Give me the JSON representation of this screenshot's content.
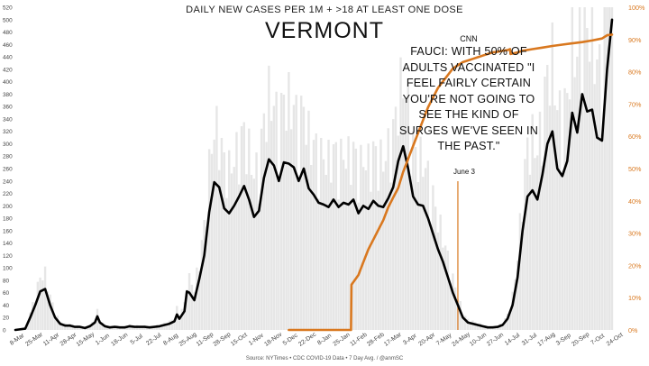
{
  "chart_data": {
    "type": "line",
    "title": "DAILY NEW CASES PER 1M + >18 AT LEAST ONE DOSE",
    "subtitle": "VERMONT",
    "source": "Source: NYTimes • CDC COVID-19 Data • 7 Day Avg. / @anmSC",
    "x_tick_labels": [
      "8-Mar",
      "25-Mar",
      "11-Apr",
      "28-Apr",
      "15-May",
      "1-Jun",
      "18-Jun",
      "5-Jul",
      "22-Jul",
      "8-Aug",
      "25-Aug",
      "11-Sep",
      "28-Sep",
      "15-Oct",
      "1-Nov",
      "18-Nov",
      "5-Dec",
      "22-Dec",
      "8-Jan",
      "25-Jan",
      "11-Feb",
      "28-Feb",
      "17-Mar",
      "3-Apr",
      "20-Apr",
      "7-May",
      "24-May",
      "10-Jun",
      "27-Jun",
      "14-Jul",
      "31-Jul",
      "17-Aug",
      "3-Sep",
      "20-Sep",
      "7-Oct",
      "24-Oct"
    ],
    "left_axis": {
      "label": "",
      "ylim": [
        0,
        520
      ],
      "ticks": [
        0,
        20,
        40,
        60,
        80,
        100,
        120,
        140,
        160,
        180,
        200,
        220,
        240,
        260,
        280,
        300,
        320,
        340,
        360,
        380,
        400,
        420,
        440,
        460,
        480,
        500,
        520
      ]
    },
    "right_axis": {
      "label": "",
      "ylim": [
        0,
        100
      ],
      "ticks": [
        "0%",
        "10%",
        "20%",
        "30%",
        "40%",
        "50%",
        "60%",
        "70%",
        "80%",
        "90%",
        "100%"
      ]
    },
    "series": [
      {
        "name": "",
        "axis": "left",
        "color": "#000000",
        "points": [
          [
            0,
            0
          ],
          [
            2,
            2
          ],
          [
            3,
            20
          ],
          [
            4,
            40
          ],
          [
            5,
            62
          ],
          [
            6,
            66
          ],
          [
            7,
            40
          ],
          [
            8,
            20
          ],
          [
            9,
            10
          ],
          [
            10,
            7
          ],
          [
            11,
            7
          ],
          [
            12,
            5
          ],
          [
            13,
            5
          ],
          [
            14,
            3
          ],
          [
            15,
            6
          ],
          [
            16,
            12
          ],
          [
            16.5,
            22
          ],
          [
            17,
            12
          ],
          [
            18,
            6
          ],
          [
            19,
            4
          ],
          [
            20,
            5
          ],
          [
            21,
            4
          ],
          [
            22,
            4
          ],
          [
            23,
            6
          ],
          [
            24,
            5
          ],
          [
            25,
            5
          ],
          [
            26,
            5
          ],
          [
            27,
            4
          ],
          [
            28,
            5
          ],
          [
            29,
            6
          ],
          [
            30,
            8
          ],
          [
            31,
            10
          ],
          [
            32,
            14
          ],
          [
            32.5,
            25
          ],
          [
            33,
            18
          ],
          [
            34,
            30
          ],
          [
            34.5,
            62
          ],
          [
            35,
            60
          ],
          [
            36,
            48
          ],
          [
            37,
            82
          ],
          [
            38,
            120
          ],
          [
            39,
            190
          ],
          [
            40,
            238
          ],
          [
            41,
            230
          ],
          [
            42,
            196
          ],
          [
            43,
            188
          ],
          [
            44,
            200
          ],
          [
            45,
            215
          ],
          [
            46,
            232
          ],
          [
            47,
            210
          ],
          [
            48,
            182
          ],
          [
            49,
            192
          ],
          [
            50,
            245
          ],
          [
            51,
            275
          ],
          [
            52,
            265
          ],
          [
            53,
            240
          ],
          [
            54,
            270
          ],
          [
            55,
            268
          ],
          [
            56,
            262
          ],
          [
            57,
            240
          ],
          [
            58,
            260
          ],
          [
            59,
            228
          ],
          [
            60,
            218
          ],
          [
            61,
            205
          ],
          [
            62,
            202
          ],
          [
            63,
            198
          ],
          [
            64,
            210
          ],
          [
            65,
            198
          ],
          [
            66,
            205
          ],
          [
            67,
            202
          ],
          [
            68,
            210
          ],
          [
            69,
            188
          ],
          [
            70,
            200
          ],
          [
            71,
            195
          ],
          [
            72,
            208
          ],
          [
            73,
            200
          ],
          [
            74,
            198
          ],
          [
            75,
            212
          ],
          [
            76,
            230
          ],
          [
            77,
            272
          ],
          [
            78,
            296
          ],
          [
            79,
            260
          ],
          [
            80,
            215
          ],
          [
            81,
            202
          ],
          [
            82,
            200
          ],
          [
            83,
            180
          ],
          [
            84,
            155
          ],
          [
            85,
            130
          ],
          [
            86,
            110
          ],
          [
            87,
            85
          ],
          [
            88,
            60
          ],
          [
            89,
            40
          ],
          [
            90,
            20
          ],
          [
            91,
            12
          ],
          [
            92,
            10
          ],
          [
            93,
            8
          ],
          [
            94,
            6
          ],
          [
            95,
            4
          ],
          [
            96,
            4
          ],
          [
            97,
            5
          ],
          [
            98,
            8
          ],
          [
            99,
            18
          ],
          [
            100,
            40
          ],
          [
            101,
            85
          ],
          [
            102,
            160
          ],
          [
            103,
            215
          ],
          [
            104,
            225
          ],
          [
            105,
            210
          ],
          [
            106,
            250
          ],
          [
            107,
            300
          ],
          [
            108,
            320
          ],
          [
            109,
            260
          ],
          [
            110,
            248
          ],
          [
            111,
            272
          ],
          [
            112,
            350
          ],
          [
            113,
            318
          ],
          [
            114,
            380
          ],
          [
            115,
            352
          ],
          [
            116,
            355
          ],
          [
            117,
            310
          ],
          [
            118,
            305
          ],
          [
            119,
            420
          ],
          [
            120,
            500
          ]
        ]
      },
      {
        "name": "",
        "axis": "right",
        "color": "#d9781f",
        "points": [
          [
            55,
            0
          ],
          [
            67.5,
            0
          ],
          [
            67.6,
            14
          ],
          [
            69,
            17
          ],
          [
            70,
            21
          ],
          [
            71,
            25
          ],
          [
            72,
            28
          ],
          [
            73,
            31
          ],
          [
            74,
            34
          ],
          [
            75,
            38
          ],
          [
            76,
            41
          ],
          [
            77,
            44
          ],
          [
            78,
            49
          ],
          [
            79,
            53
          ],
          [
            80,
            57
          ],
          [
            81,
            61
          ],
          [
            82,
            65
          ],
          [
            83,
            69
          ],
          [
            84,
            72
          ],
          [
            85,
            75
          ],
          [
            86,
            77
          ],
          [
            87,
            79
          ],
          [
            88,
            81
          ],
          [
            89,
            82
          ],
          [
            90,
            83
          ],
          [
            91,
            83.5
          ],
          [
            92,
            84
          ],
          [
            93,
            84.5
          ],
          [
            94,
            85
          ],
          [
            95,
            85.5
          ],
          [
            96,
            86
          ],
          [
            97,
            86.2
          ],
          [
            98,
            86.5
          ],
          [
            99,
            86.7
          ],
          [
            99.5,
            87
          ],
          [
            99.6,
            85.5
          ],
          [
            101,
            86
          ],
          [
            102,
            86.5
          ],
          [
            104,
            87
          ],
          [
            106,
            87.5
          ],
          [
            108,
            88
          ],
          [
            110,
            88.4
          ],
          [
            112,
            88.8
          ],
          [
            114,
            89.2
          ],
          [
            116,
            89.7
          ],
          [
            118,
            90.3
          ],
          [
            119,
            91.3
          ],
          [
            120,
            91.5
          ]
        ]
      }
    ],
    "reference_line": {
      "label": "June 3",
      "x": 89,
      "color": "#d9781f"
    },
    "annotation": {
      "source": "CNN",
      "quote": "FAUCI: WITH 50% OF ADULTS VACCINATED \"I FEEL FAIRLY CERTAIN YOU'RE NOT GOING TO SEE THE KIND OF SURGES WE'VE SEEN IN THE PAST.\""
    },
    "grid": false,
    "legend": "none"
  }
}
